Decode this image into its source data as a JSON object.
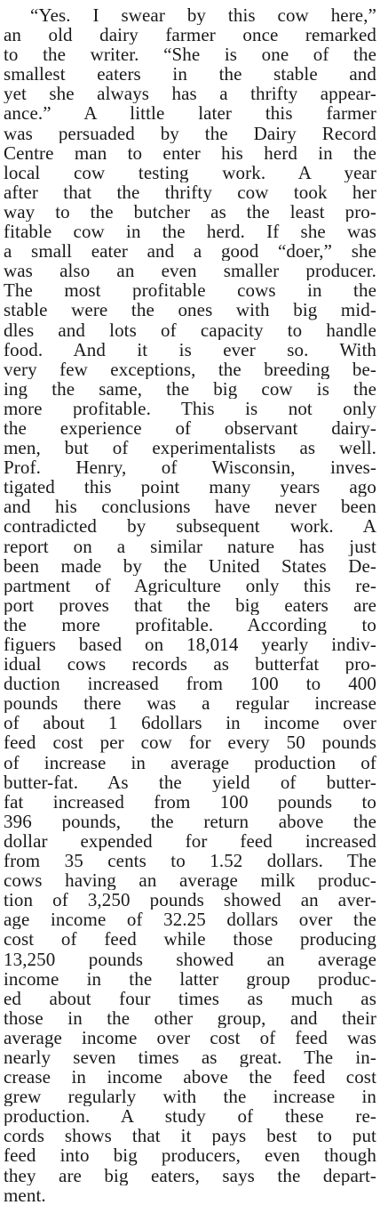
{
  "lines": [
    "“Yes. I swear by this cow here,”",
    "an old dairy farmer once remarked",
    "to the writer. “She is one of the",
    "smallest eaters in the stable and",
    "yet she always has a thrifty appear-",
    "ance.” A little later this farmer",
    "was persuaded by the Dairy Record",
    "Centre man to enter his herd in the",
    "local cow testing work. A year",
    "after that the thrifty cow took her",
    "way to the butcher as the least pro-",
    "fitable cow in the herd. If she was",
    "a small eater and a good “doer,” she",
    "was also an even smaller producer.",
    "The most profitable cows in the",
    "stable were the ones with big mid-",
    "dles and lots of capacity to handle",
    "food. And it is ever so. With",
    "very few exceptions, the breeding be-",
    "ing the same, the big cow is the",
    "more profitable. This is not only",
    "the experience of observant dairy-",
    "men, but of experimentalists as well.",
    "Prof. Henry, of Wisconsin, inves-",
    "tigated this point many years ago",
    "and his conclusions have never been",
    "contradicted by subsequent work. A",
    "report on a similar nature has just",
    "been made by the United States De-",
    "partment of Agriculture only this re-",
    "port proves that the big eaters are",
    "the more profitable. According to",
    "figuers based on 18,014 yearly indiv-",
    "idual cows records as butterfat pro-",
    "duction increased from 100 to 400",
    "pounds there was a regular increase",
    "of about 1 6dollars in income over",
    "feed cost per cow for every 50 pounds",
    "of increase in average production of",
    "butter-fat. As the yield of butter-",
    "fat increased from 100 pounds to",
    "396 pounds, the return above the",
    "dollar expended for feed increased",
    "from 35 cents to 1.52 dollars. The",
    "cows having an average milk produc-",
    "tion of 3,250 pounds showed an aver-",
    "age income of 32.25 dollars over the",
    "cost of feed while those producing",
    "13,250 pounds showed an average",
    "income in the latter group produc-",
    "ed about four times as much as",
    "those in the other group, and their",
    "average income over cost of feed was",
    "nearly seven times as great. The in-",
    "crease in income above the feed cost",
    "grew regularly with the increase in",
    "production. A study of these re-",
    "cords shows that it pays best to put",
    "feed into big producers, even though",
    "they are big eaters, says the depart-",
    "ment."
  ]
}
